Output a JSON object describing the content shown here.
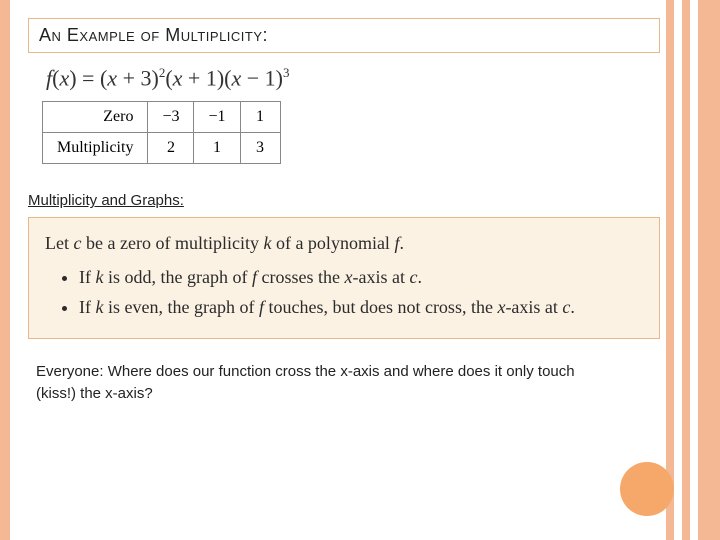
{
  "title": "An Example of Multiplicity:",
  "equation": {
    "fn": "f",
    "var": "x",
    "factors": [
      {
        "offset": "+ 3",
        "power": "2"
      },
      {
        "offset": "+ 1",
        "power": ""
      },
      {
        "offset": "− 1",
        "power": "3"
      }
    ]
  },
  "table": {
    "row_labels": [
      "Zero",
      "Multiplicity"
    ],
    "columns": [
      "−3",
      "−1",
      "1"
    ],
    "values": [
      "2",
      "1",
      "3"
    ]
  },
  "subhead": "Multiplicity and Graphs:",
  "theorem": {
    "intro_a": "Let ",
    "c": "c",
    "intro_b": " be a zero of multiplicity ",
    "k": "k",
    "intro_c": " of a polynomial ",
    "f": "f",
    "intro_d": ".",
    "bullet1_a": "If ",
    "bullet1_b": " is odd, the graph of ",
    "bullet1_c": " crosses the ",
    "xaxis": "x",
    "axis_suffix": "-axis at ",
    "bullet1_end": ".",
    "bullet2_a": "If ",
    "bullet2_b": " is even, the graph of ",
    "bullet2_c": " touches, but does not cross, the ",
    "bullet2_end": "."
  },
  "question": "Everyone: Where does our function cross the x-axis and where does it only touch (kiss!) the x-axis?",
  "colors": {
    "accent": "#f5a869",
    "stripe": "#f5b895",
    "theorem_bg": "#fbf2e4",
    "border": "#e8b88a"
  }
}
